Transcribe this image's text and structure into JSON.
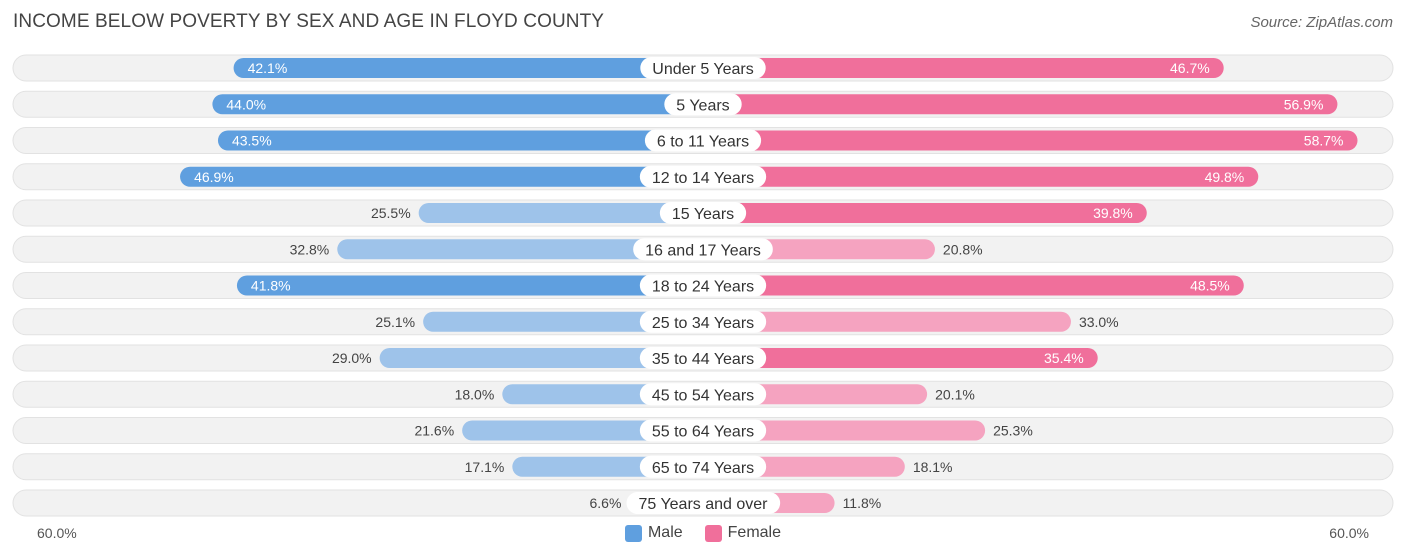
{
  "header": {
    "title": "INCOME BELOW POVERTY BY SEX AND AGE IN FLOYD COUNTY",
    "source": "Source: ZipAtlas.com"
  },
  "axis": {
    "left_label": "60.0%",
    "right_label": "60.0%"
  },
  "legend": {
    "male_label": "Male",
    "female_label": "Female"
  },
  "colors": {
    "male_strong": "#5f9fdf",
    "male_light": "#9ec3ea",
    "female_strong": "#f06f9b",
    "female_light": "#f5a3c0",
    "row_bg": "#f2f2f2"
  },
  "chart_data": {
    "type": "bar",
    "orientation": "horizontal-diverging",
    "title": "INCOME BELOW POVERTY BY SEX AND AGE IN FLOYD COUNTY",
    "xlim": [
      -60,
      60
    ],
    "unit": "%",
    "categories": [
      "Under 5 Years",
      "5 Years",
      "6 to 11 Years",
      "12 to 14 Years",
      "15 Years",
      "16 and 17 Years",
      "18 to 24 Years",
      "25 to 34 Years",
      "35 to 44 Years",
      "45 to 54 Years",
      "55 to 64 Years",
      "65 to 74 Years",
      "75 Years and over"
    ],
    "series": [
      {
        "name": "Male",
        "values": [
          42.1,
          44.0,
          43.5,
          46.9,
          25.5,
          32.8,
          41.8,
          25.1,
          29.0,
          18.0,
          21.6,
          17.1,
          6.6
        ]
      },
      {
        "name": "Female",
        "values": [
          46.7,
          56.9,
          58.7,
          49.8,
          39.8,
          20.8,
          48.5,
          33.0,
          35.4,
          20.1,
          25.3,
          18.1,
          11.8
        ]
      }
    ]
  }
}
